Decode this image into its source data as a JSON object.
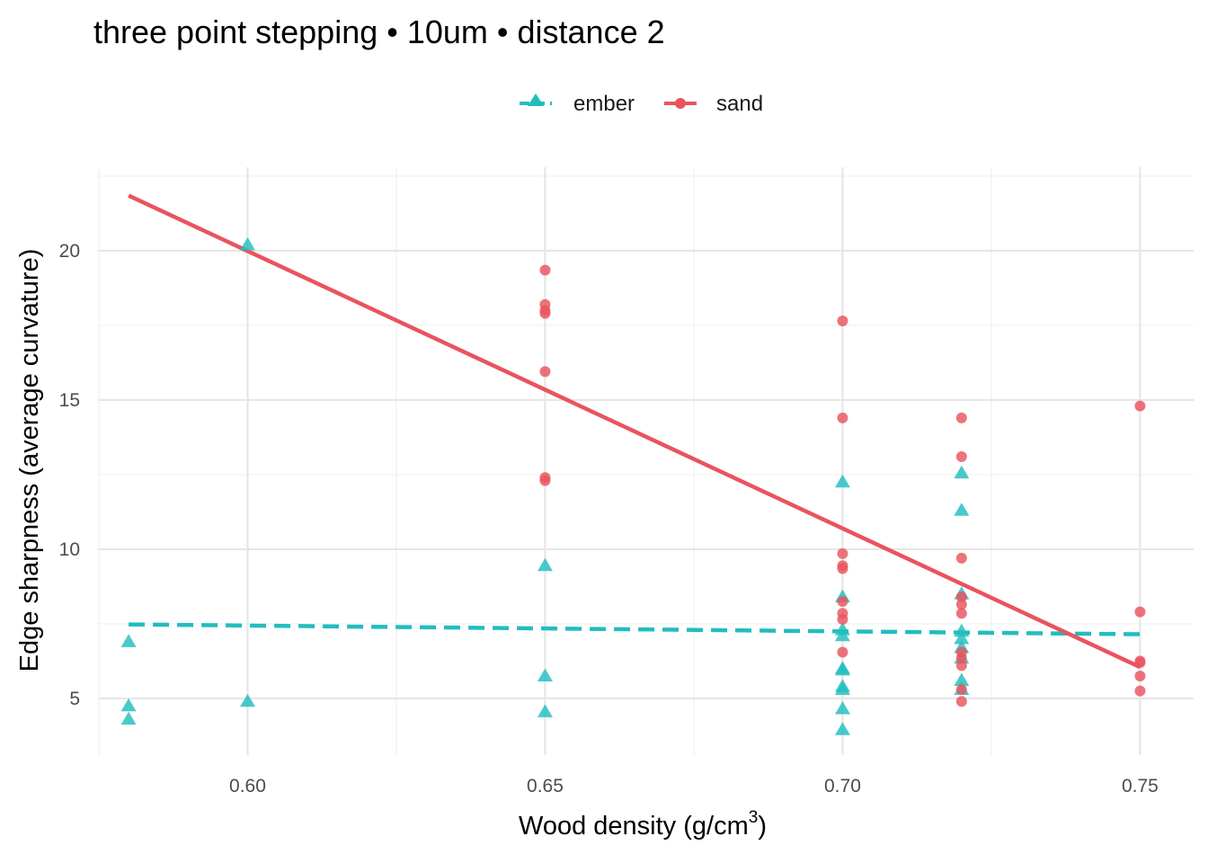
{
  "chart_data": {
    "type": "scatter",
    "title": "three point stepping • 10um • distance 2",
    "xlabel": "Wood density (g/cm",
    "xlabel_sup": "3",
    "xlabel_suffix": ")",
    "ylabel": "Edge sharpness (average curvature)",
    "xlim": [
      0.575,
      0.759
    ],
    "ylim": [
      3.1,
      22.8
    ],
    "x_ticks": [
      0.6,
      0.65,
      0.7,
      0.75
    ],
    "x_tick_labels": [
      "0.60",
      "0.65",
      "0.70",
      "0.75"
    ],
    "y_ticks": [
      5,
      10,
      15,
      20
    ],
    "y_tick_labels": [
      "5",
      "10",
      "15",
      "20"
    ],
    "grid": true,
    "legend_position": "top",
    "series": [
      {
        "name": "ember",
        "color": "#22bdbf",
        "marker": "triangle",
        "line_style": "dashed",
        "fit": {
          "x": [
            0.58,
            0.75
          ],
          "y": [
            7.48,
            7.15
          ]
        },
        "points": [
          {
            "x": 0.58,
            "y": 6.9
          },
          {
            "x": 0.58,
            "y": 4.75
          },
          {
            "x": 0.58,
            "y": 4.3
          },
          {
            "x": 0.6,
            "y": 20.2
          },
          {
            "x": 0.6,
            "y": 4.9
          },
          {
            "x": 0.65,
            "y": 9.45
          },
          {
            "x": 0.65,
            "y": 5.75
          },
          {
            "x": 0.65,
            "y": 4.55
          },
          {
            "x": 0.7,
            "y": 12.25
          },
          {
            "x": 0.7,
            "y": 8.4
          },
          {
            "x": 0.7,
            "y": 7.3
          },
          {
            "x": 0.7,
            "y": 7.1
          },
          {
            "x": 0.7,
            "y": 6.0
          },
          {
            "x": 0.7,
            "y": 5.95
          },
          {
            "x": 0.7,
            "y": 5.4
          },
          {
            "x": 0.7,
            "y": 5.3
          },
          {
            "x": 0.7,
            "y": 4.65
          },
          {
            "x": 0.7,
            "y": 3.95
          },
          {
            "x": 0.72,
            "y": 12.55
          },
          {
            "x": 0.72,
            "y": 11.3
          },
          {
            "x": 0.72,
            "y": 8.5
          },
          {
            "x": 0.72,
            "y": 7.25
          },
          {
            "x": 0.72,
            "y": 7.0
          },
          {
            "x": 0.72,
            "y": 6.7
          },
          {
            "x": 0.72,
            "y": 6.35
          },
          {
            "x": 0.72,
            "y": 5.6
          },
          {
            "x": 0.72,
            "y": 5.3
          }
        ]
      },
      {
        "name": "sand",
        "color": "#e9545e",
        "marker": "circle",
        "line_style": "solid",
        "fit": {
          "x": [
            0.58,
            0.75
          ],
          "y": [
            21.85,
            6.05
          ]
        },
        "points": [
          {
            "x": 0.65,
            "y": 19.35
          },
          {
            "x": 0.65,
            "y": 18.2
          },
          {
            "x": 0.65,
            "y": 18.0
          },
          {
            "x": 0.65,
            "y": 17.9
          },
          {
            "x": 0.65,
            "y": 15.95
          },
          {
            "x": 0.65,
            "y": 12.4
          },
          {
            "x": 0.65,
            "y": 12.3
          },
          {
            "x": 0.7,
            "y": 17.65
          },
          {
            "x": 0.7,
            "y": 14.4
          },
          {
            "x": 0.7,
            "y": 9.85
          },
          {
            "x": 0.7,
            "y": 9.45
          },
          {
            "x": 0.7,
            "y": 9.35
          },
          {
            "x": 0.7,
            "y": 8.25
          },
          {
            "x": 0.7,
            "y": 7.85
          },
          {
            "x": 0.7,
            "y": 7.65
          },
          {
            "x": 0.7,
            "y": 6.55
          },
          {
            "x": 0.72,
            "y": 14.4
          },
          {
            "x": 0.72,
            "y": 13.1
          },
          {
            "x": 0.72,
            "y": 9.7
          },
          {
            "x": 0.72,
            "y": 8.4
          },
          {
            "x": 0.72,
            "y": 8.15
          },
          {
            "x": 0.72,
            "y": 7.85
          },
          {
            "x": 0.72,
            "y": 6.55
          },
          {
            "x": 0.72,
            "y": 6.35
          },
          {
            "x": 0.72,
            "y": 6.1
          },
          {
            "x": 0.72,
            "y": 5.3
          },
          {
            "x": 0.72,
            "y": 4.9
          },
          {
            "x": 0.75,
            "y": 14.8
          },
          {
            "x": 0.75,
            "y": 7.9
          },
          {
            "x": 0.75,
            "y": 6.25
          },
          {
            "x": 0.75,
            "y": 6.2
          },
          {
            "x": 0.75,
            "y": 5.75
          },
          {
            "x": 0.75,
            "y": 5.25
          }
        ]
      }
    ]
  }
}
